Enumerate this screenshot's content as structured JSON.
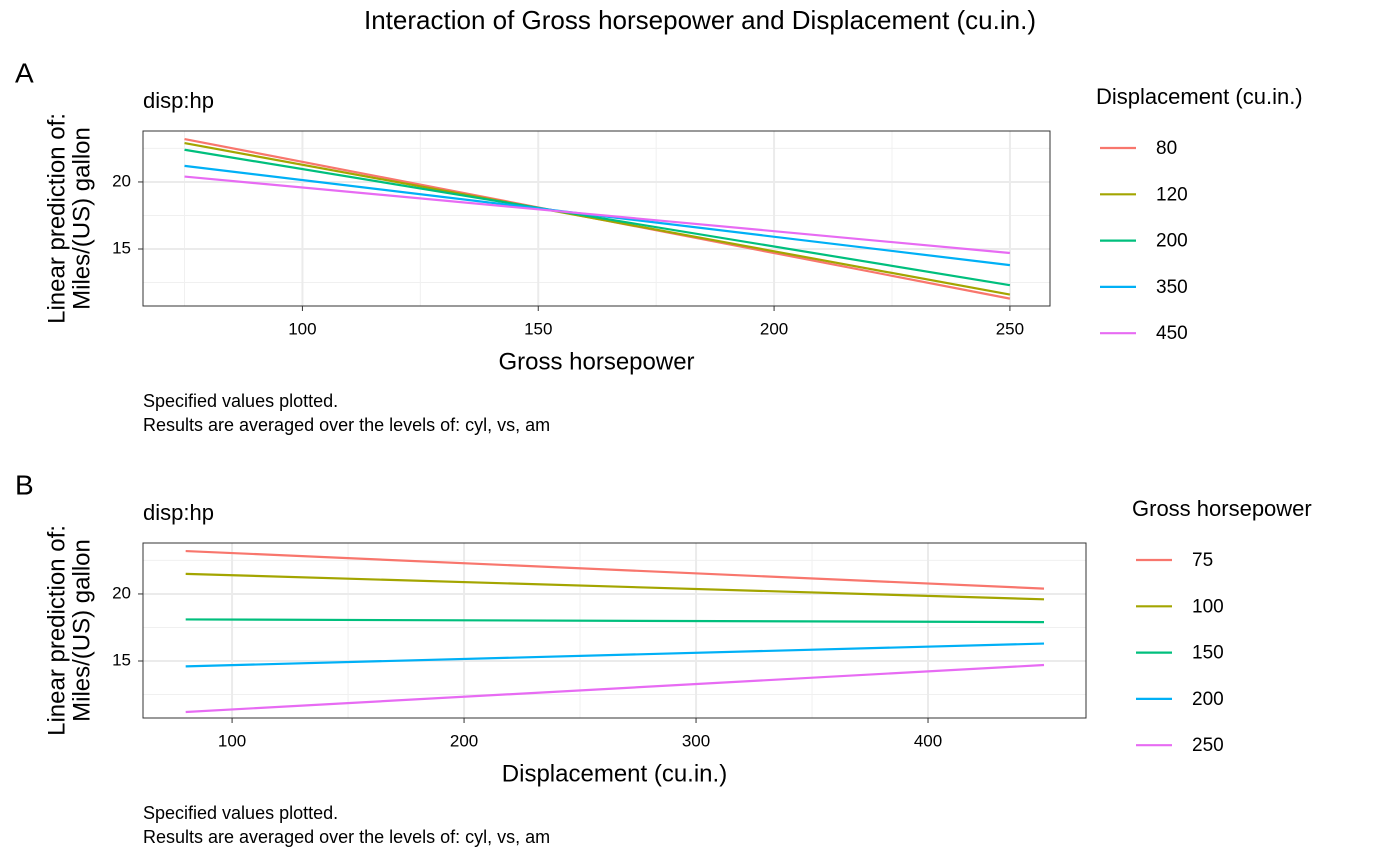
{
  "title": "Interaction of Gross horsepower and Displacement (cu.in.)",
  "chart_data": [
    {
      "type": "line",
      "tag": "A",
      "subtitle": "disp:hp",
      "x_label": "Gross horsepower",
      "y_label": [
        "Linear prediction of:",
        "Miles/(US) gallon"
      ],
      "caption": [
        "Specified values plotted.",
        "Results are averaged over the levels of: cyl, vs, am"
      ],
      "legend_title": "Displacement (cu.in.)",
      "legend_position": "right",
      "grid": true,
      "x": [
        75,
        250
      ],
      "xlim": [
        66.2,
        258.5
      ],
      "xticks": [
        100,
        150,
        200,
        250
      ],
      "x_minor_grid": [
        75,
        125,
        175,
        225
      ],
      "ylim": [
        10.75,
        23.8
      ],
      "yticks": [
        15,
        20
      ],
      "y_minor_grid": [
        12.5,
        17.5,
        22.5
      ],
      "series": [
        {
          "name": "80",
          "color": "#F8766D",
          "values": [
            23.2,
            11.3
          ]
        },
        {
          "name": "120",
          "color": "#A3A500",
          "values": [
            22.9,
            11.6
          ]
        },
        {
          "name": "200",
          "color": "#00BF7D",
          "values": [
            22.4,
            12.3
          ]
        },
        {
          "name": "350",
          "color": "#00B0F6",
          "values": [
            21.2,
            13.8
          ]
        },
        {
          "name": "450",
          "color": "#E76BF3",
          "values": [
            20.4,
            14.7
          ]
        }
      ]
    },
    {
      "type": "line",
      "tag": "B",
      "subtitle": "disp:hp",
      "x_label": "Displacement (cu.in.)",
      "y_label": [
        "Linear prediction of:",
        "Miles/(US) gallon"
      ],
      "caption": [
        "Specified values plotted.",
        "Results are averaged over the levels of: cyl, vs, am"
      ],
      "legend_title": "Gross horsepower",
      "legend_position": "right",
      "grid": true,
      "x": [
        80,
        450
      ],
      "xlim": [
        61.6,
        468.1
      ],
      "xticks": [
        100,
        200,
        300,
        400
      ],
      "x_minor_grid": [
        150,
        250,
        350
      ],
      "ylim": [
        10.75,
        23.8
      ],
      "yticks": [
        15,
        20
      ],
      "y_minor_grid": [
        12.5,
        17.5,
        22.5
      ],
      "series": [
        {
          "name": "75",
          "color": "#F8766D",
          "values": [
            23.2,
            20.4
          ]
        },
        {
          "name": "100",
          "color": "#A3A500",
          "values": [
            21.5,
            19.6
          ]
        },
        {
          "name": "150",
          "color": "#00BF7D",
          "values": [
            18.1,
            17.9
          ]
        },
        {
          "name": "200",
          "color": "#00B0F6",
          "values": [
            14.6,
            16.3
          ]
        },
        {
          "name": "250",
          "color": "#E76BF3",
          "values": [
            11.2,
            14.7
          ]
        }
      ]
    }
  ]
}
